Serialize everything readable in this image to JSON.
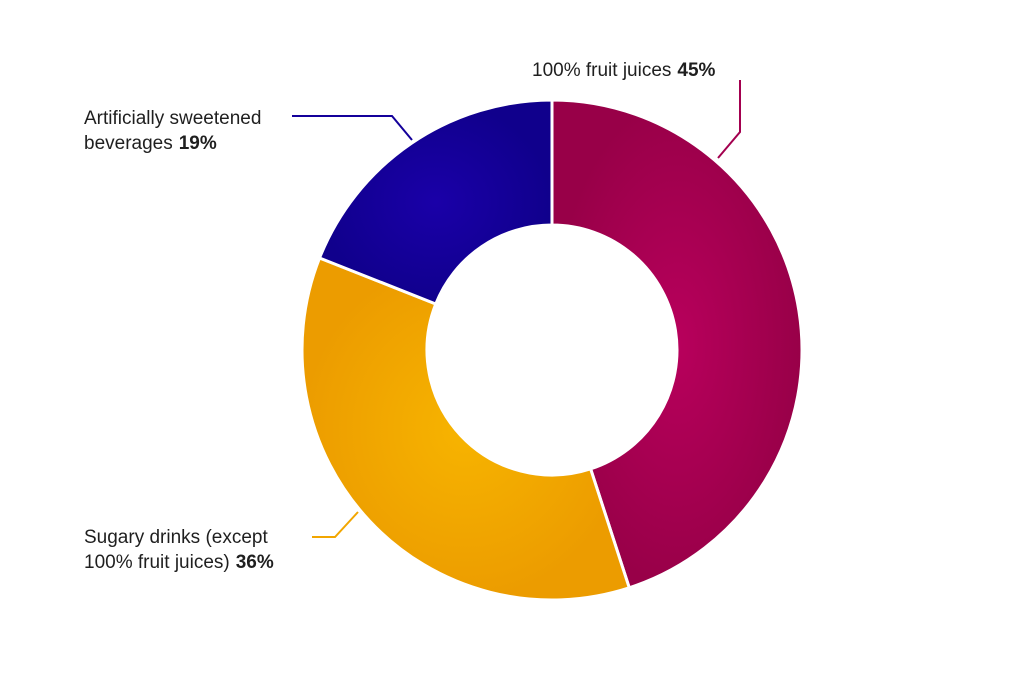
{
  "chart_data": {
    "type": "pie",
    "variant": "donut",
    "slices": [
      {
        "label": "100% fruit juices",
        "value": 45,
        "value_label": "45%",
        "color": "#a3004f"
      },
      {
        "label": "Sugary drinks (except 100% fruit juices)",
        "value": 36,
        "value_label": "36%",
        "color": "#f2a600"
      },
      {
        "label": "Artificially sweetened beverages",
        "value": 19,
        "value_label": "19%",
        "color": "#14009a"
      }
    ]
  },
  "labels": {
    "fruit": {
      "text": "100% fruit juices",
      "pct": "45%"
    },
    "artificial": {
      "line1": "Artificially sweetened",
      "line2": "beverages",
      "pct": "19%"
    },
    "sugary": {
      "line1": "Sugary drinks (except",
      "line2": "100% fruit juices)",
      "pct": "36%"
    }
  }
}
